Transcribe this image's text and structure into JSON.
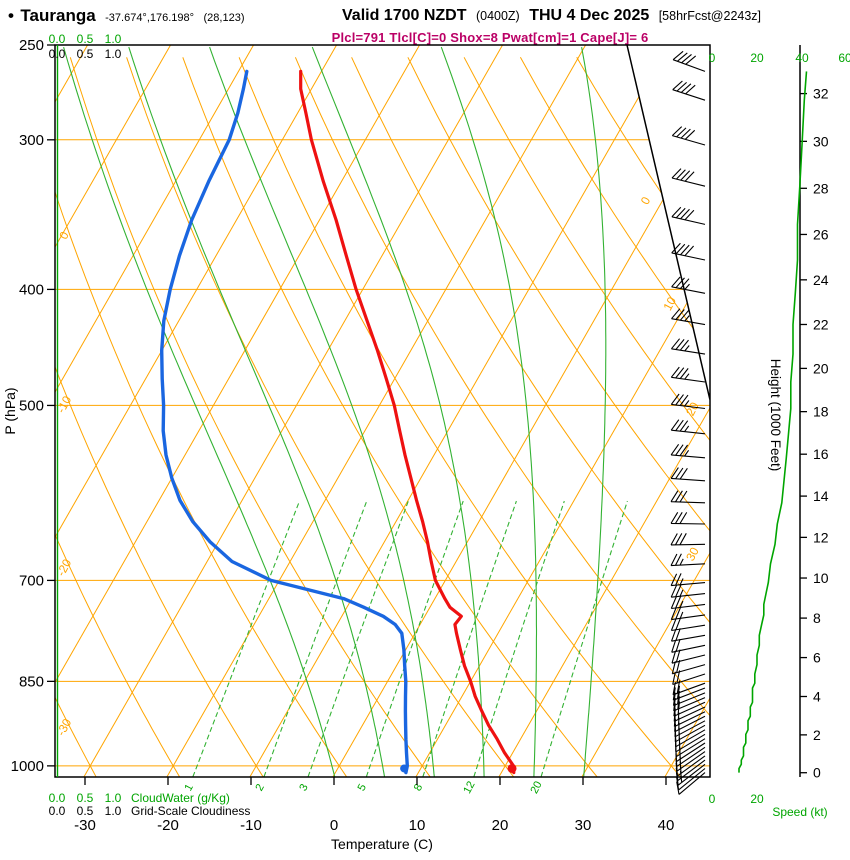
{
  "header": {
    "bullet": "•",
    "station": "Tauranga",
    "coords": "-37.674°,176.198°",
    "grid_point": "(28,123)",
    "valid_label": "Valid 1700 NZDT",
    "valid_utc": "(0400Z)",
    "valid_date": "THU 4 Dec 2025",
    "forecast_info": "[58hrFcst@2243z]",
    "params_line": "Plcl=791 Tlcl[C]=0 Shox=8 Pwat[cm]=1 Cape[J]= 6"
  },
  "axes": {
    "pressure_label": "P (hPa)",
    "pressure_ticks": [
      250,
      300,
      400,
      500,
      700,
      850,
      1000
    ],
    "temperature_label": "Temperature (C)",
    "temperature_ticks": [
      -30,
      -20,
      -10,
      0,
      10,
      20,
      30,
      40
    ],
    "height_label": "Height (1000 Feet)",
    "height_ticks_kft": [
      0,
      2,
      4,
      6,
      8,
      10,
      12,
      14,
      16,
      18,
      20,
      22,
      24,
      26,
      28,
      30,
      32
    ],
    "speed_label": "Speed (kt)",
    "speed_ticks_top": [
      "0",
      "20",
      "40",
      "60"
    ],
    "speed_ticks_bottom": [
      "0",
      "20"
    ],
    "cloud_scale_values": [
      "0.0",
      "0.5",
      "1.0"
    ],
    "cloudwater_label": "CloudWater (g/Kg)",
    "cloudiness_label": "Grid-Scale Cloudiness"
  },
  "colors": {
    "grid_orange": "#FFA500",
    "grid_green": "#33B233",
    "label_green": "#00A500",
    "trace_red": "#EE1111",
    "trace_blue": "#1A66E0",
    "params_magenta": "#BB0066",
    "black": "#000000"
  },
  "chart_data": {
    "type": "line",
    "title": "Skew-T log-P forecast sounding, Tauranga, valid 1700 NZDT THU 4 Dec 2025",
    "x_axis": {
      "label": "Temperature (C)",
      "ticks": [
        -30,
        -20,
        -10,
        0,
        10,
        20,
        30,
        40
      ]
    },
    "y_axis": {
      "label": "P (hPa)",
      "scale": "log",
      "ticks": [
        250,
        300,
        400,
        500,
        700,
        850,
        1000
      ],
      "top_hpa": 250,
      "bottom_hpa": 1021
    },
    "height_axis": {
      "label": "Height (1000 Feet)",
      "ticks_kft": [
        0,
        2,
        4,
        6,
        8,
        10,
        12,
        14,
        16,
        18,
        20,
        22,
        24,
        26,
        28,
        30,
        32
      ]
    },
    "series": [
      {
        "name": "temperature",
        "color_key": "trace_red",
        "pressure_hpa": [
          1013,
          1000,
          975,
          950,
          925,
          900,
          875,
          850,
          825,
          800,
          775,
          762,
          750,
          737,
          725,
          700,
          675,
          650,
          625,
          600,
          575,
          550,
          525,
          500,
          475,
          450,
          425,
          400,
          375,
          350,
          325,
          300,
          285,
          272,
          263
        ],
        "values_c": [
          21.5,
          21.0,
          19.0,
          17.2,
          15.2,
          13.4,
          11.6,
          10.0,
          8.2,
          6.6,
          5.0,
          4.2,
          4.4,
          2.4,
          1.2,
          -1.2,
          -3.0,
          -4.8,
          -6.8,
          -9.0,
          -11.2,
          -13.5,
          -15.8,
          -18.2,
          -21.0,
          -24.0,
          -27.3,
          -30.8,
          -34.3,
          -38.0,
          -42.2,
          -46.5,
          -49.0,
          -51.3,
          -52.5
        ]
      },
      {
        "name": "dewpoint",
        "color_key": "trace_blue",
        "pressure_hpa": [
          1013,
          1000,
          975,
          950,
          925,
          900,
          875,
          850,
          825,
          800,
          775,
          762,
          750,
          737,
          725,
          700,
          675,
          650,
          625,
          600,
          575,
          550,
          525,
          500,
          475,
          450,
          425,
          400,
          375,
          350,
          325,
          300,
          285,
          272,
          263
        ],
        "values_c": [
          8.5,
          8.2,
          7.2,
          6.2,
          5.2,
          4.2,
          3.2,
          2.2,
          1.0,
          -0.2,
          -1.6,
          -3.0,
          -5.0,
          -8.0,
          -11.0,
          -21.0,
          -27.0,
          -31.0,
          -34.5,
          -37.5,
          -40.0,
          -42.3,
          -44.3,
          -46.0,
          -48.0,
          -50.0,
          -51.8,
          -53.2,
          -54.4,
          -55.4,
          -56.0,
          -56.4,
          -57.2,
          -58.2,
          -59.0
        ]
      }
    ],
    "surface_dots": {
      "pressure_hpa": 1005,
      "temperature_c": 21,
      "dewpoint_c": 8
    },
    "winds": {
      "pressure_hpa": [
        1013,
        1005,
        997,
        989,
        981,
        973,
        965,
        957,
        949,
        941,
        933,
        925,
        917,
        909,
        901,
        893,
        885,
        877,
        869,
        861,
        853,
        838,
        823,
        808,
        793,
        778,
        763,
        748,
        733,
        718,
        703,
        678,
        653,
        628,
        603,
        578,
        553,
        528,
        503,
        478,
        453,
        428,
        403,
        378,
        353,
        328,
        303,
        278,
        263
      ],
      "speed_kt": [
        12,
        12,
        13,
        13,
        14,
        14,
        14,
        15,
        15,
        15,
        16,
        16,
        16,
        17,
        17,
        17,
        18,
        18,
        18,
        18,
        19,
        19,
        20,
        20,
        21,
        21,
        22,
        23,
        23,
        24,
        25,
        26,
        28,
        29,
        31,
        32,
        33,
        34,
        35,
        35,
        36,
        36,
        37,
        38,
        38,
        39,
        40,
        41,
        42
      ],
      "direction_deg": [
        230,
        231,
        232,
        233,
        234,
        235,
        236,
        237,
        238,
        239,
        240,
        241,
        242,
        243,
        244,
        245,
        246,
        247,
        248,
        249,
        250,
        252,
        254,
        256,
        258,
        260,
        261,
        262,
        263,
        264,
        265,
        267,
        269,
        271,
        272,
        274,
        275,
        276,
        277,
        278,
        279,
        280,
        281,
        282,
        283,
        284,
        286,
        288,
        290
      ]
    },
    "grid": {
      "isobars_hpa": [
        300,
        400,
        500,
        700,
        850,
        1000
      ],
      "isotherms_c": {
        "min": -120,
        "max": 40,
        "step": 10
      },
      "isotherm_labels_c": [
        0,
        10,
        20,
        30
      ],
      "dry_adiabats_c": {
        "min": -40,
        "max": 200,
        "step": 10
      },
      "dry_adiabat_labels_c": [
        10,
        0,
        -10,
        -20,
        -30
      ],
      "moist_adiabats_c": [
        0,
        6,
        12,
        18,
        24,
        30
      ],
      "mixing_ratio_gkg": [
        1,
        2,
        3,
        5,
        8,
        12,
        20
      ]
    },
    "cloud_panels": {
      "scale": [
        0.0,
        0.5,
        1.0
      ],
      "cloudwater_label": "CloudWater (g/Kg)",
      "cloudiness_label": "Grid-Scale Cloudiness",
      "cloudwater_profile": "zero throughout column"
    },
    "speed_profile_scale": {
      "label": "Speed (kt)",
      "kt_ticks": [
        0,
        20,
        40,
        60
      ]
    }
  }
}
